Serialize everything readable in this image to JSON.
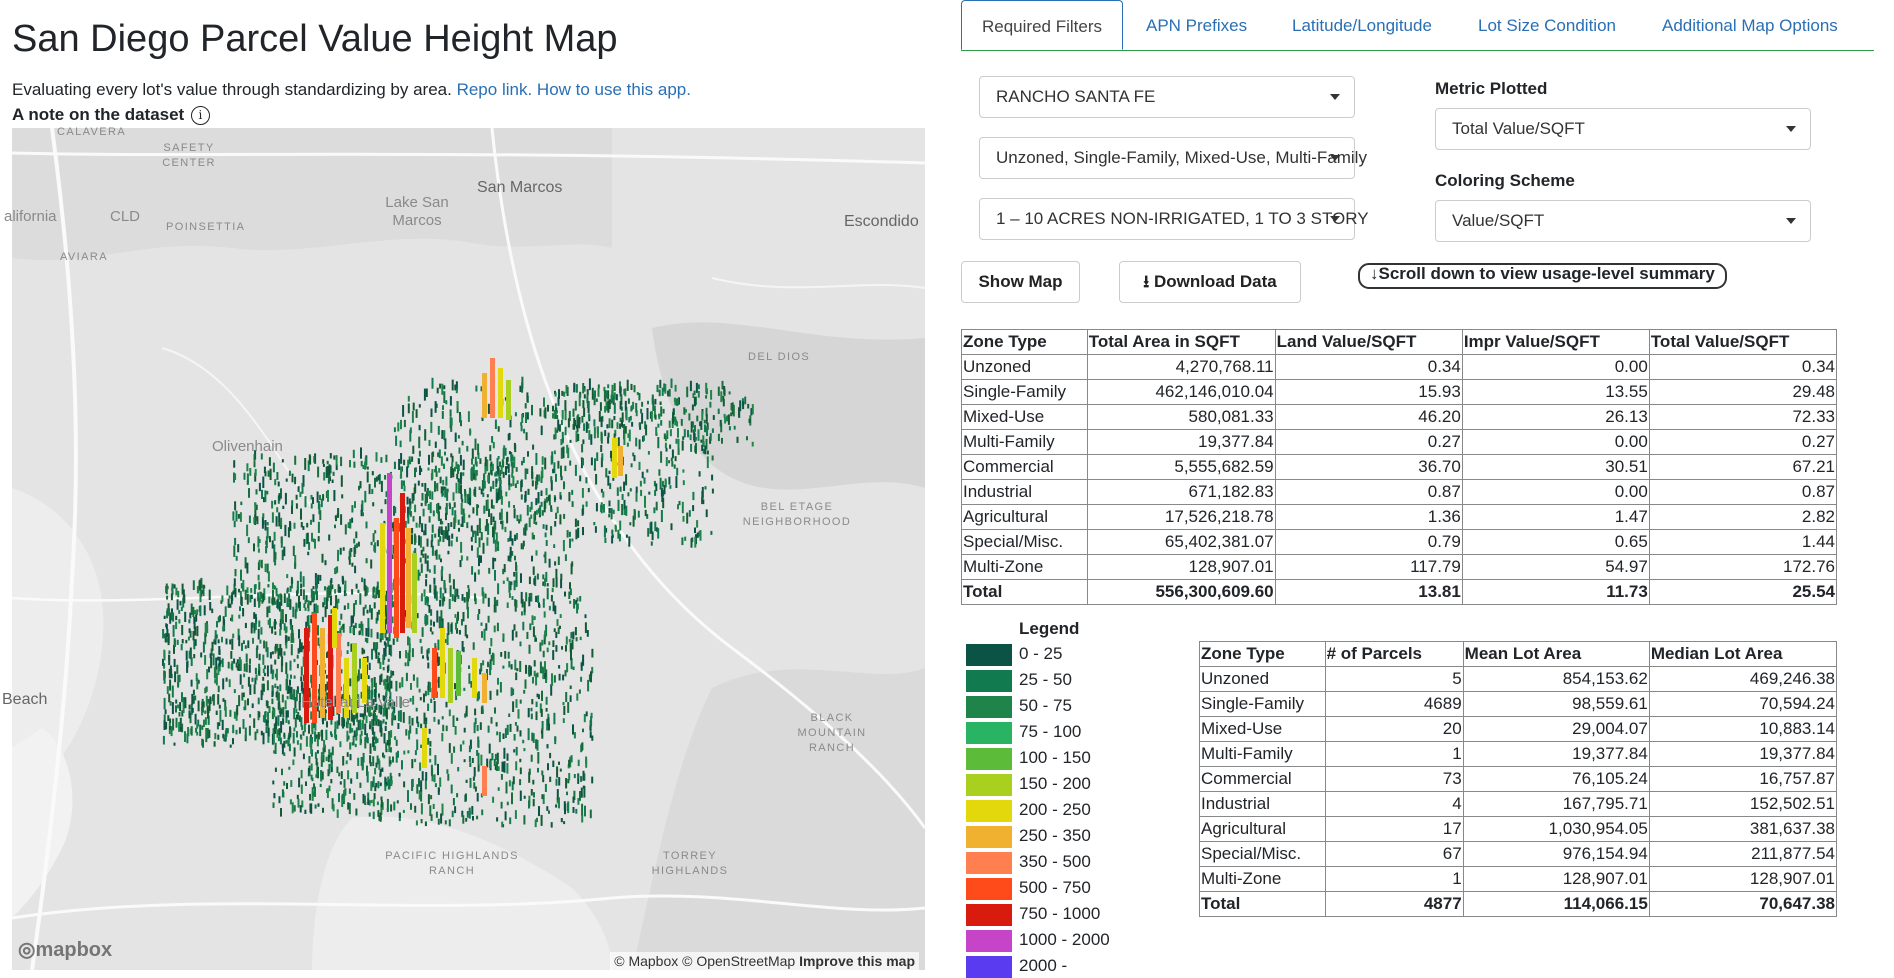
{
  "page": {
    "title": "San Diego Parcel Value Height Map",
    "subtitle_text": "Evaluating every lot's value through standardizing by area.",
    "repo_link": "Repo link.",
    "howto_link": "How to use this app.",
    "note_label": "A note on the dataset",
    "info_icon": "i"
  },
  "map": {
    "labels": [
      {
        "text": "CALAVERA",
        "cls": "sm"
      },
      {
        "text": "SAFETY CENTER",
        "cls": "sm"
      },
      {
        "text": "Lake San Marcos",
        "cls": ""
      },
      {
        "text": "San Marcos",
        "cls": "dk"
      },
      {
        "text": "Escondido",
        "cls": "dk"
      },
      {
        "text": "alifornia",
        "cls": ""
      },
      {
        "text": "CLD",
        "cls": ""
      },
      {
        "text": "POINSETTIA",
        "cls": "sm"
      },
      {
        "text": "AVIARA",
        "cls": "sm"
      },
      {
        "text": "DEL DIOS",
        "cls": "sm"
      },
      {
        "text": "Olivenhain",
        "cls": ""
      },
      {
        "text": "BEL ETAGE NEIGHBORHOOD",
        "cls": "sm"
      },
      {
        "text": "Beach",
        "cls": "dk"
      },
      {
        "text": "Hotel at La Valle",
        "cls": ""
      },
      {
        "text": "BLACK MOUNTAIN RANCH",
        "cls": "sm"
      },
      {
        "text": "PACIFIC HIGHLANDS RANCH",
        "cls": "sm"
      },
      {
        "text": "TORREY HIGHLANDS",
        "cls": "sm"
      }
    ],
    "logo": "mapbox",
    "attribution": "© Mapbox © OpenStreetMap",
    "improve_link": "Improve this map"
  },
  "tabs": [
    "Required Filters",
    "APN Prefixes",
    "Latitude/Longitude",
    "Lot Size Condition",
    "Additional Map Options"
  ],
  "filters": {
    "community": "RANCHO SANTA FE",
    "zones": "Unzoned, Single-Family, Mixed-Use, Multi-Family",
    "land_use": "1 – 10 ACRES NON-IRRIGATED, 1 TO 3 STORY",
    "metric_label": "Metric Plotted",
    "metric_value": "Total Value/SQFT",
    "coloring_label": "Coloring Scheme",
    "coloring_value": "Value/SQFT"
  },
  "buttons": {
    "show_map": "Show Map",
    "download": "Download Data",
    "scroll_note": "↓Scroll down to view usage-level summary"
  },
  "table1": {
    "headers": [
      "Zone Type",
      "Total Area in SQFT",
      "Land Value/SQFT",
      "Impr Value/SQFT",
      "Total Value/SQFT"
    ],
    "rows": [
      [
        "Unzoned",
        "4,270,768.11",
        "0.34",
        "0.00",
        "0.34"
      ],
      [
        "Single-Family",
        "462,146,010.04",
        "15.93",
        "13.55",
        "29.48"
      ],
      [
        "Mixed-Use",
        "580,081.33",
        "46.20",
        "26.13",
        "72.33"
      ],
      [
        "Multi-Family",
        "19,377.84",
        "0.27",
        "0.00",
        "0.27"
      ],
      [
        "Commercial",
        "5,555,682.59",
        "36.70",
        "30.51",
        "67.21"
      ],
      [
        "Industrial",
        "671,182.83",
        "0.87",
        "0.00",
        "0.87"
      ],
      [
        "Agricultural",
        "17,526,218.78",
        "1.36",
        "1.47",
        "2.82"
      ],
      [
        "Special/Misc.",
        "65,402,381.07",
        "0.79",
        "0.65",
        "1.44"
      ],
      [
        "Multi-Zone",
        "128,907.01",
        "117.79",
        "54.97",
        "172.76"
      ],
      [
        "Total",
        "556,300,609.60",
        "13.81",
        "11.73",
        "25.54"
      ]
    ]
  },
  "table2": {
    "headers": [
      "Zone Type",
      "# of Parcels",
      "Mean Lot Area",
      "Median Lot Area"
    ],
    "rows": [
      [
        "Unzoned",
        "5",
        "854,153.62",
        "469,246.38"
      ],
      [
        "Single-Family",
        "4689",
        "98,559.61",
        "70,594.24"
      ],
      [
        "Mixed-Use",
        "20",
        "29,004.07",
        "10,883.14"
      ],
      [
        "Multi-Family",
        "1",
        "19,377.84",
        "19,377.84"
      ],
      [
        "Commercial",
        "73",
        "76,105.24",
        "16,757.87"
      ],
      [
        "Industrial",
        "4",
        "167,795.71",
        "152,502.51"
      ],
      [
        "Agricultural",
        "17",
        "1,030,954.05",
        "381,637.38"
      ],
      [
        "Special/Misc.",
        "67",
        "976,154.94",
        "211,877.54"
      ],
      [
        "Multi-Zone",
        "1",
        "128,907.01",
        "128,907.01"
      ],
      [
        "Total",
        "4877",
        "114,066.15",
        "70,647.38"
      ]
    ]
  },
  "legend": {
    "title": "Legend",
    "items": [
      {
        "label": "0 - 25",
        "color": "#0b5345"
      },
      {
        "label": "25 - 50",
        "color": "#117a4e"
      },
      {
        "label": "50 - 75",
        "color": "#1e8449"
      },
      {
        "label": "75 - 100",
        "color": "#28b463"
      },
      {
        "label": "100 - 150",
        "color": "#5dbb3a"
      },
      {
        "label": "150 - 200",
        "color": "#a9cf1f"
      },
      {
        "label": "200 - 250",
        "color": "#e3d80c"
      },
      {
        "label": "250 - 350",
        "color": "#f0b030"
      },
      {
        "label": "350 - 500",
        "color": "#ff7f50"
      },
      {
        "label": "500 - 750",
        "color": "#ff4a1a"
      },
      {
        "label": "750 - 1000",
        "color": "#d81b0e"
      },
      {
        "label": "1000 - 2000",
        "color": "#c544c8"
      },
      {
        "label": "2000 -",
        "color": "#5b3bf0"
      }
    ]
  }
}
